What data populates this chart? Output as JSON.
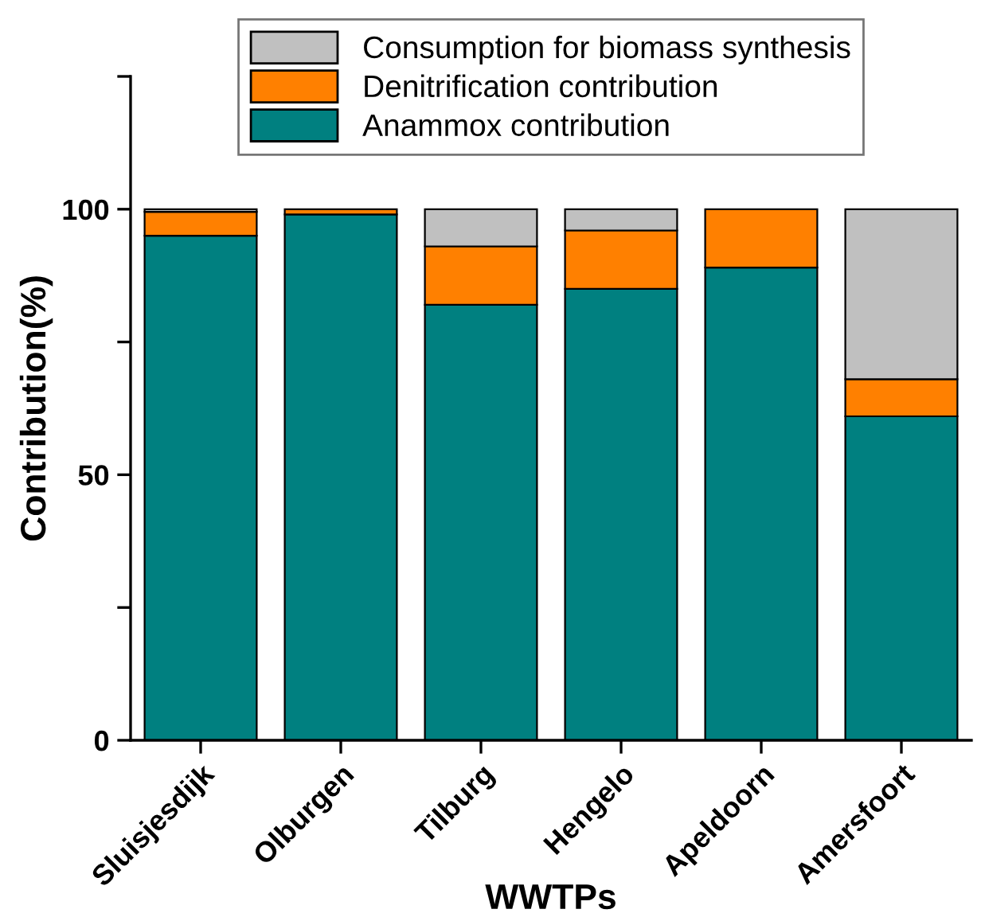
{
  "chart_data": {
    "type": "bar",
    "stacked": true,
    "xlabel": "WWTPs",
    "ylabel": "Contribution(%)",
    "categories": [
      "Sluisjesdijk",
      "Olburgen",
      "Tilburg",
      "Hengelo",
      "Apeldoorn",
      "Amersfoort"
    ],
    "series": [
      {
        "name": "Anammox contribution",
        "color": "#008080",
        "values": [
          95,
          99,
          82,
          85,
          89,
          61
        ]
      },
      {
        "name": "Denitrification contribution",
        "color": "#ff8000",
        "values": [
          4.5,
          1,
          11,
          11,
          11,
          7
        ]
      },
      {
        "name": "Consumption for biomass synthesis",
        "color": "#c0c0c0",
        "values": [
          0.5,
          null,
          7,
          4,
          null,
          32
        ]
      }
    ],
    "ylim": [
      0,
      125
    ],
    "yticks": [
      0,
      {
        "value": 25,
        "label": null
      },
      50,
      {
        "value": 75,
        "label": null
      },
      100,
      {
        "value": 125,
        "label": null
      }
    ],
    "grid": false,
    "legend": "top"
  }
}
